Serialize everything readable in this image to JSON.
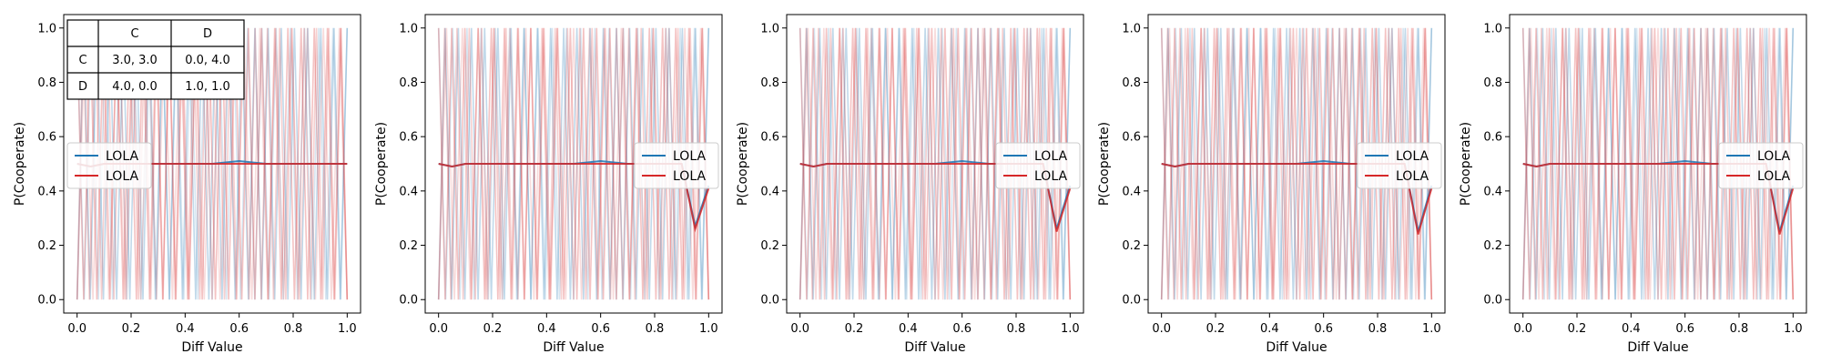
{
  "chart_data": [
    {
      "type": "line",
      "xlabel": "Diff Value",
      "ylabel": "P(Cooperate)",
      "xlim": [
        0.0,
        1.0
      ],
      "ylim": [
        0.0,
        1.0
      ],
      "xticks": [
        "0.0",
        "0.2",
        "0.4",
        "0.6",
        "0.8",
        "1.0"
      ],
      "yticks": [
        "0.0",
        "0.2",
        "0.4",
        "0.6",
        "0.8",
        "1.0"
      ],
      "legend": {
        "placement": "center-left",
        "entries": [
          {
            "label": "LOLA",
            "color": "#1f77b4"
          },
          {
            "label": "LOLA",
            "color": "#d62728"
          }
        ]
      },
      "payoff_table": {
        "header": [
          "",
          "C",
          "D"
        ],
        "rows": [
          [
            "C",
            "3.0, 3.0",
            "0.0, 4.0"
          ],
          [
            "D",
            "4.0, 0.0",
            "1.0, 1.0"
          ]
        ]
      },
      "series": [
        {
          "color": "#1f77b4",
          "x": [
            0.0,
            0.05,
            0.1,
            0.2,
            0.3,
            0.4,
            0.5,
            0.6,
            0.7,
            0.8,
            0.9,
            1.0
          ],
          "y": [
            0.5,
            0.49,
            0.5,
            0.5,
            0.5,
            0.5,
            0.5,
            0.51,
            0.5,
            0.5,
            0.5,
            0.5
          ]
        },
        {
          "color": "#d62728",
          "x": [
            0.0,
            0.05,
            0.1,
            0.2,
            0.3,
            0.4,
            0.5,
            0.6,
            0.7,
            0.8,
            0.9,
            1.0
          ],
          "y": [
            0.5,
            0.49,
            0.5,
            0.5,
            0.5,
            0.5,
            0.5,
            0.5,
            0.5,
            0.5,
            0.5,
            0.5
          ]
        }
      ]
    },
    {
      "type": "line",
      "xlabel": "Diff Value",
      "ylabel": "P(Cooperate)",
      "xlim": [
        0.0,
        1.0
      ],
      "ylim": [
        0.0,
        1.0
      ],
      "xticks": [
        "0.0",
        "0.2",
        "0.4",
        "0.6",
        "0.8",
        "1.0"
      ],
      "yticks": [
        "0.0",
        "0.2",
        "0.4",
        "0.6",
        "0.8",
        "1.0"
      ],
      "legend": {
        "placement": "center-right",
        "entries": [
          {
            "label": "LOLA",
            "color": "#1f77b4"
          },
          {
            "label": "LOLA",
            "color": "#d62728"
          }
        ]
      },
      "series": [
        {
          "color": "#1f77b4",
          "x": [
            0.0,
            0.05,
            0.1,
            0.2,
            0.3,
            0.4,
            0.5,
            0.6,
            0.7,
            0.8,
            0.9,
            0.95,
            1.0
          ],
          "y": [
            0.5,
            0.49,
            0.5,
            0.5,
            0.5,
            0.5,
            0.5,
            0.51,
            0.5,
            0.5,
            0.5,
            0.27,
            0.42
          ]
        },
        {
          "color": "#d62728",
          "x": [
            0.0,
            0.05,
            0.1,
            0.2,
            0.3,
            0.4,
            0.5,
            0.6,
            0.7,
            0.8,
            0.9,
            0.95,
            1.0
          ],
          "y": [
            0.5,
            0.49,
            0.5,
            0.5,
            0.5,
            0.5,
            0.5,
            0.5,
            0.5,
            0.5,
            0.5,
            0.26,
            0.41
          ]
        }
      ]
    },
    {
      "type": "line",
      "xlabel": "Diff Value",
      "ylabel": "P(Cooperate)",
      "xlim": [
        0.0,
        1.0
      ],
      "ylim": [
        0.0,
        1.0
      ],
      "xticks": [
        "0.0",
        "0.2",
        "0.4",
        "0.6",
        "0.8",
        "1.0"
      ],
      "yticks": [
        "0.0",
        "0.2",
        "0.4",
        "0.6",
        "0.8",
        "1.0"
      ],
      "legend": {
        "placement": "center-right",
        "entries": [
          {
            "label": "LOLA",
            "color": "#1f77b4"
          },
          {
            "label": "LOLA",
            "color": "#d62728"
          }
        ]
      },
      "series": [
        {
          "color": "#1f77b4",
          "x": [
            0.0,
            0.05,
            0.1,
            0.2,
            0.3,
            0.4,
            0.5,
            0.6,
            0.7,
            0.8,
            0.9,
            0.95,
            1.0
          ],
          "y": [
            0.5,
            0.49,
            0.5,
            0.5,
            0.5,
            0.5,
            0.5,
            0.51,
            0.5,
            0.5,
            0.5,
            0.26,
            0.42
          ]
        },
        {
          "color": "#d62728",
          "x": [
            0.0,
            0.05,
            0.1,
            0.2,
            0.3,
            0.4,
            0.5,
            0.6,
            0.7,
            0.8,
            0.9,
            0.95,
            1.0
          ],
          "y": [
            0.5,
            0.49,
            0.5,
            0.5,
            0.5,
            0.5,
            0.5,
            0.5,
            0.5,
            0.5,
            0.5,
            0.25,
            0.41
          ]
        }
      ]
    },
    {
      "type": "line",
      "xlabel": "Diff Value",
      "ylabel": "P(Cooperate)",
      "xlim": [
        0.0,
        1.0
      ],
      "ylim": [
        0.0,
        1.0
      ],
      "xticks": [
        "0.0",
        "0.2",
        "0.4",
        "0.6",
        "0.8",
        "1.0"
      ],
      "yticks": [
        "0.0",
        "0.2",
        "0.4",
        "0.6",
        "0.8",
        "1.0"
      ],
      "legend": {
        "placement": "center-right",
        "entries": [
          {
            "label": "LOLA",
            "color": "#1f77b4"
          },
          {
            "label": "LOLA",
            "color": "#d62728"
          }
        ]
      },
      "series": [
        {
          "color": "#1f77b4",
          "x": [
            0.0,
            0.05,
            0.1,
            0.2,
            0.3,
            0.4,
            0.5,
            0.6,
            0.7,
            0.8,
            0.9,
            0.95,
            1.0
          ],
          "y": [
            0.5,
            0.49,
            0.5,
            0.5,
            0.5,
            0.5,
            0.5,
            0.51,
            0.5,
            0.5,
            0.5,
            0.25,
            0.42
          ]
        },
        {
          "color": "#d62728",
          "x": [
            0.0,
            0.05,
            0.1,
            0.2,
            0.3,
            0.4,
            0.5,
            0.6,
            0.7,
            0.8,
            0.9,
            0.95,
            1.0
          ],
          "y": [
            0.5,
            0.49,
            0.5,
            0.5,
            0.5,
            0.5,
            0.5,
            0.5,
            0.5,
            0.5,
            0.5,
            0.24,
            0.41
          ]
        }
      ]
    },
    {
      "type": "line",
      "xlabel": "Diff Value",
      "ylabel": "P(Cooperate)",
      "xlim": [
        0.0,
        1.0
      ],
      "ylim": [
        0.0,
        1.0
      ],
      "xticks": [
        "0.0",
        "0.2",
        "0.4",
        "0.6",
        "0.8",
        "1.0"
      ],
      "yticks": [
        "0.0",
        "0.2",
        "0.4",
        "0.6",
        "0.8",
        "1.0"
      ],
      "legend": {
        "placement": "center-right",
        "entries": [
          {
            "label": "LOLA",
            "color": "#1f77b4"
          },
          {
            "label": "LOLA",
            "color": "#d62728"
          }
        ]
      },
      "series": [
        {
          "color": "#1f77b4",
          "x": [
            0.0,
            0.05,
            0.1,
            0.2,
            0.3,
            0.4,
            0.5,
            0.6,
            0.7,
            0.8,
            0.9,
            0.95,
            1.0
          ],
          "y": [
            0.5,
            0.49,
            0.5,
            0.5,
            0.5,
            0.5,
            0.5,
            0.51,
            0.5,
            0.5,
            0.5,
            0.25,
            0.42
          ]
        },
        {
          "color": "#d62728",
          "x": [
            0.0,
            0.05,
            0.1,
            0.2,
            0.3,
            0.4,
            0.5,
            0.6,
            0.7,
            0.8,
            0.9,
            0.95,
            1.0
          ],
          "y": [
            0.5,
            0.49,
            0.5,
            0.5,
            0.5,
            0.5,
            0.5,
            0.5,
            0.5,
            0.5,
            0.5,
            0.24,
            0.41
          ]
        }
      ]
    }
  ]
}
